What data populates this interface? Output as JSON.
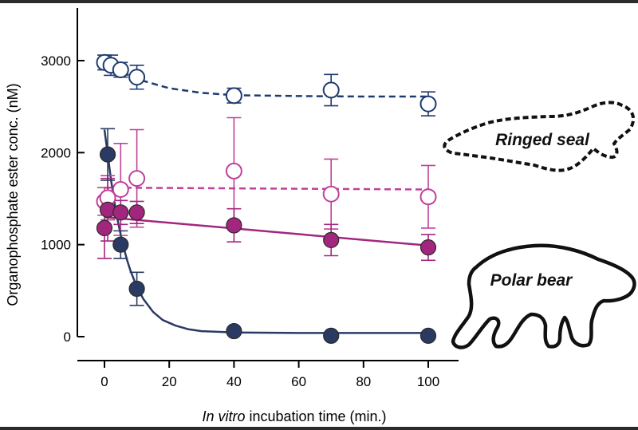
{
  "chart_data": {
    "type": "scatter",
    "xlabel_italic": "In vitro",
    "xlabel_rest": " incubation time (min.)",
    "ylabel": "Organophosphate ester conc. (nM)",
    "xlim": [
      -2,
      108
    ],
    "ylim": [
      -80,
      3600
    ],
    "x_ticks": [
      0,
      20,
      40,
      60,
      80,
      100
    ],
    "x_tick_labels": [
      "0",
      "20",
      "40",
      "60",
      "80",
      "100"
    ],
    "y_ticks": [
      0,
      1000,
      2000,
      3000
    ],
    "y_tick_labels": [
      "0",
      "1000",
      "2000",
      "3000"
    ],
    "grid": false,
    "annotations": [
      {
        "text": "Ringed seal",
        "icon": "ringed-seal-outline-icon"
      },
      {
        "text": "Polar bear",
        "icon": "polar-bear-outline-icon"
      }
    ],
    "series": [
      {
        "id": "seal-dark-open",
        "color": "#1f3a6e",
        "marker": "open",
        "line": "dashed",
        "points": [
          {
            "x": 0,
            "y": 2980,
            "err": 80
          },
          {
            "x": 2,
            "y": 2950,
            "err": 110
          },
          {
            "x": 5,
            "y": 2900,
            "err": 80
          },
          {
            "x": 10,
            "y": 2820,
            "err": 130
          },
          {
            "x": 40,
            "y": 2620,
            "err": 80
          },
          {
            "x": 70,
            "y": 2680,
            "err": 170
          },
          {
            "x": 100,
            "y": 2530,
            "err": 130
          }
        ],
        "fit": [
          [
            0,
            2980
          ],
          [
            5,
            2880
          ],
          [
            10,
            2800
          ],
          [
            20,
            2700
          ],
          [
            30,
            2650
          ],
          [
            40,
            2625
          ],
          [
            60,
            2615
          ],
          [
            80,
            2610
          ],
          [
            100,
            2610
          ]
        ]
      },
      {
        "id": "bear-magenta-open",
        "color": "#c0409a",
        "marker": "open",
        "line": "dashed",
        "points": [
          {
            "x": 0,
            "y": 1470,
            "err": 150
          },
          {
            "x": 1,
            "y": 1510,
            "err": 240
          },
          {
            "x": 5,
            "y": 1600,
            "err": 500
          },
          {
            "x": 10,
            "y": 1720,
            "err": 530
          },
          {
            "x": 40,
            "y": 1800,
            "err": 580
          },
          {
            "x": 70,
            "y": 1550,
            "err": 380
          },
          {
            "x": 100,
            "y": 1520,
            "err": 340
          }
        ],
        "fit": [
          [
            0,
            1620
          ],
          [
            100,
            1600
          ]
        ]
      },
      {
        "id": "bear-magenta-filled",
        "color": "#a3267e",
        "marker": "filled",
        "line": "solid",
        "points": [
          {
            "x": 0,
            "y": 1180,
            "err": 330
          },
          {
            "x": 1,
            "y": 1380,
            "err": 340
          },
          {
            "x": 5,
            "y": 1350,
            "err": 130
          },
          {
            "x": 10,
            "y": 1350,
            "err": 120
          },
          {
            "x": 40,
            "y": 1210,
            "err": 180
          },
          {
            "x": 70,
            "y": 1050,
            "err": 170
          },
          {
            "x": 100,
            "y": 970,
            "err": 140
          }
        ],
        "fit": [
          [
            0,
            1300
          ],
          [
            100,
            990
          ]
        ]
      },
      {
        "id": "bear-dark-filled",
        "color": "#2b3a63",
        "marker": "filled",
        "line": "solid",
        "points": [
          {
            "x": 1,
            "y": 1980,
            "err": 280
          },
          {
            "x": 5,
            "y": 1000,
            "err": 150
          },
          {
            "x": 10,
            "y": 520,
            "err": 180
          },
          {
            "x": 40,
            "y": 60,
            "err": 30
          },
          {
            "x": 70,
            "y": 10,
            "err": 10
          },
          {
            "x": 100,
            "y": 10,
            "err": 10
          }
        ],
        "fit": [
          [
            0,
            2250
          ],
          [
            1,
            1980
          ],
          [
            2,
            1710
          ],
          [
            3,
            1480
          ],
          [
            4,
            1280
          ],
          [
            5,
            1110
          ],
          [
            6,
            960
          ],
          [
            7,
            830
          ],
          [
            8,
            720
          ],
          [
            10,
            540
          ],
          [
            12,
            410
          ],
          [
            15,
            270
          ],
          [
            18,
            180
          ],
          [
            22,
            120
          ],
          [
            26,
            80
          ],
          [
            30,
            60
          ],
          [
            40,
            45
          ],
          [
            60,
            40
          ],
          [
            80,
            40
          ],
          [
            100,
            40
          ]
        ]
      }
    ]
  }
}
